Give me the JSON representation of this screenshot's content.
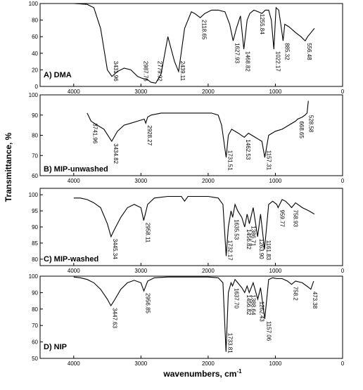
{
  "figure": {
    "ylabel": "Transmittance, %",
    "xlabel_base": "wavenumbers, cm",
    "xlabel_sup": "-1"
  },
  "chart_data": [
    {
      "type": "line",
      "title": "A) DMA",
      "xlim": [
        0,
        4500
      ],
      "ylim": [
        0,
        100
      ],
      "xticks": [
        "4000",
        "3000",
        "2000",
        "1000",
        "0"
      ],
      "yticks": [
        "0",
        "20",
        "40",
        "60",
        "80",
        "100"
      ],
      "x": [
        4000,
        3800,
        3700,
        3600,
        3500,
        3431.96,
        3350,
        3250,
        3150,
        3050,
        2987.76,
        2900,
        2850,
        2779.92,
        2700,
        2600,
        2500,
        2439.11,
        2350,
        2250,
        2200,
        2118.65,
        2050,
        1950,
        1850,
        1750,
        1680,
        1627.93,
        1580,
        1520,
        1468.82,
        1420,
        1380,
        1320,
        1255.84,
        1200,
        1150,
        1100,
        1060,
        1022.17,
        990,
        950,
        910,
        885.32,
        860,
        800,
        700,
        620,
        556.48,
        520,
        470,
        420
      ],
      "y": [
        100,
        99,
        95,
        70,
        20,
        12,
        18,
        22,
        20,
        12,
        10,
        8,
        5,
        4,
        15,
        60,
        30,
        18,
        70,
        90,
        88,
        83,
        88,
        92,
        92,
        90,
        75,
        55,
        70,
        85,
        45,
        80,
        88,
        92,
        90,
        88,
        92,
        92,
        80,
        45,
        95,
        92,
        70,
        55,
        75,
        72,
        65,
        60,
        55,
        60,
        65,
        70
      ],
      "annotations": [
        {
          "x": 3431.96,
          "label": "3431.96"
        },
        {
          "x": 2987.76,
          "label": "2987.76"
        },
        {
          "x": 2779.92,
          "label": "2779.92"
        },
        {
          "x": 2439.11,
          "label": "2439.11"
        },
        {
          "x": 2118.65,
          "label": "2118.65"
        },
        {
          "x": 1627.93,
          "label": "1627.93"
        },
        {
          "x": 1468.82,
          "label": "1468.82"
        },
        {
          "x": 1255.84,
          "label": "1255.84"
        },
        {
          "x": 1022.17,
          "label": "1022.17"
        },
        {
          "x": 885.32,
          "label": "885.32"
        },
        {
          "x": 556.48,
          "label": "556.48"
        }
      ]
    },
    {
      "type": "line",
      "title": "B) MIP-unwashed",
      "xlim": [
        0,
        4500
      ],
      "ylim": [
        60,
        100
      ],
      "xticks": [
        "4000",
        "3000",
        "2000",
        "1000",
        "0"
      ],
      "yticks": [
        "60",
        "70",
        "80",
        "90",
        "100"
      ],
      "x": [
        3800,
        3741.96,
        3650,
        3550,
        3434.82,
        3350,
        3250,
        3150,
        3050,
        2950,
        2928.27,
        2900,
        2850,
        2700,
        2500,
        2300,
        2100,
        1950,
        1850,
        1800,
        1731.51,
        1700,
        1650,
        1550,
        1462.53,
        1400,
        1300,
        1250,
        1200,
        1157.31,
        1100,
        1000,
        900,
        800,
        700,
        668.65,
        600,
        560,
        528.58,
        510
      ],
      "y": [
        91,
        87,
        85,
        83,
        77,
        82,
        85,
        86,
        87,
        88,
        86,
        89,
        90,
        91,
        91,
        91,
        91,
        91,
        90,
        85,
        69,
        80,
        83,
        81,
        79,
        81,
        79,
        78,
        77,
        69,
        80,
        82,
        83,
        85,
        87,
        88,
        89,
        90,
        91,
        97
      ],
      "annotations": [
        {
          "x": 3741.96,
          "label": "3741.96"
        },
        {
          "x": 3434.82,
          "label": "3434.82"
        },
        {
          "x": 2928.27,
          "label": "2928.27"
        },
        {
          "x": 1731.51,
          "label": "1731.51"
        },
        {
          "x": 1462.53,
          "label": "1462.53"
        },
        {
          "x": 1157.31,
          "label": "1157.31"
        },
        {
          "x": 668.65,
          "label": "668.65"
        },
        {
          "x": 528.58,
          "label": "528.58"
        }
      ]
    },
    {
      "type": "line",
      "title": "C) MIP-washed",
      "xlim": [
        0,
        4500
      ],
      "ylim": [
        78,
        102
      ],
      "xticks": [
        "4000",
        "3000",
        "2000",
        "1000",
        "0"
      ],
      "yticks": [
        "80",
        "85",
        "90",
        "95",
        "100"
      ],
      "x": [
        4000,
        3900,
        3800,
        3700,
        3600,
        3500,
        3445.34,
        3400,
        3300,
        3200,
        3100,
        3000,
        2958.11,
        2900,
        2800,
        2600,
        2400,
        2350,
        2300,
        2200,
        2000,
        1850,
        1780,
        1732.17,
        1700,
        1660,
        1635.53,
        1600,
        1560,
        1500,
        1456.82,
        1420,
        1386.71,
        1330,
        1263.9,
        1220,
        1161.83,
        1100,
        1040,
        980,
        959.77,
        900,
        850,
        800,
        758.93,
        700,
        600,
        500,
        420
      ],
      "y": [
        99,
        99,
        98.5,
        97.5,
        96,
        91,
        87,
        89,
        93,
        96,
        97,
        96,
        92,
        97,
        99,
        99.5,
        99.5,
        98,
        99.5,
        99.5,
        99.5,
        99,
        97,
        81,
        90,
        95,
        93,
        97,
        95,
        93,
        90,
        94,
        91,
        96,
        87,
        94,
        83,
        97,
        98,
        97,
        96,
        98.5,
        98,
        97,
        96,
        97.5,
        96,
        95,
        94
      ],
      "annotations": [
        {
          "x": 3445.34,
          "label": "3445.34"
        },
        {
          "x": 2958.11,
          "label": "2958.11"
        },
        {
          "x": 1732.17,
          "label": "1732.17"
        },
        {
          "x": 1635.53,
          "label": "1635.53"
        },
        {
          "x": 1456.82,
          "label": "1456.82"
        },
        {
          "x": 1386.71,
          "label": "1386.71"
        },
        {
          "x": 1263.9,
          "label": "1263.90"
        },
        {
          "x": 1161.83,
          "label": "1161.83"
        },
        {
          "x": 959.77,
          "label": "959.77"
        },
        {
          "x": 758.93,
          "label": "758.93"
        }
      ]
    },
    {
      "type": "line",
      "title": "D) NIP",
      "xlim": [
        0,
        4500
      ],
      "ylim": [
        50,
        100
      ],
      "xticks": [
        "4000",
        "3000",
        "2000",
        "1000",
        "0"
      ],
      "yticks": [
        "50",
        "60",
        "70",
        "80",
        "90",
        "100"
      ],
      "x": [
        4000,
        3900,
        3800,
        3700,
        3600,
        3500,
        3447.63,
        3400,
        3300,
        3200,
        3100,
        3000,
        2956.85,
        2900,
        2800,
        2600,
        2400,
        2200,
        2000,
        1850,
        1780,
        1733.81,
        1700,
        1660,
        1637.7,
        1600,
        1560,
        1500,
        1456.82,
        1420,
        1388.64,
        1330,
        1262.43,
        1220,
        1157.06,
        1100,
        1040,
        980,
        900,
        820,
        758.2,
        700,
        600,
        500,
        473.38,
        430
      ],
      "y": [
        99.5,
        99,
        98,
        96,
        92,
        86,
        82,
        85,
        92,
        96,
        97.5,
        96,
        91,
        97,
        99,
        99.5,
        99.5,
        99.5,
        99.5,
        99,
        96,
        54,
        90,
        96,
        94,
        98,
        96,
        93,
        90,
        94,
        90,
        96,
        86,
        93,
        74,
        98,
        99,
        98.5,
        98.5,
        97,
        95,
        97,
        96,
        93,
        92,
        97
      ],
      "annotations": [
        {
          "x": 3447.63,
          "label": "3447.63"
        },
        {
          "x": 2956.85,
          "label": "2956.85"
        },
        {
          "x": 1733.81,
          "label": "1733.81"
        },
        {
          "x": 1637.7,
          "label": "1637.70"
        },
        {
          "x": 1456.82,
          "label": "1456.82"
        },
        {
          "x": 1388.64,
          "label": "1388.64"
        },
        {
          "x": 1262.43,
          "label": "1262.43"
        },
        {
          "x": 1157.06,
          "label": "1157.06"
        },
        {
          "x": 758.2,
          "label": "758.2"
        },
        {
          "x": 473.38,
          "label": "473.38"
        }
      ]
    }
  ]
}
